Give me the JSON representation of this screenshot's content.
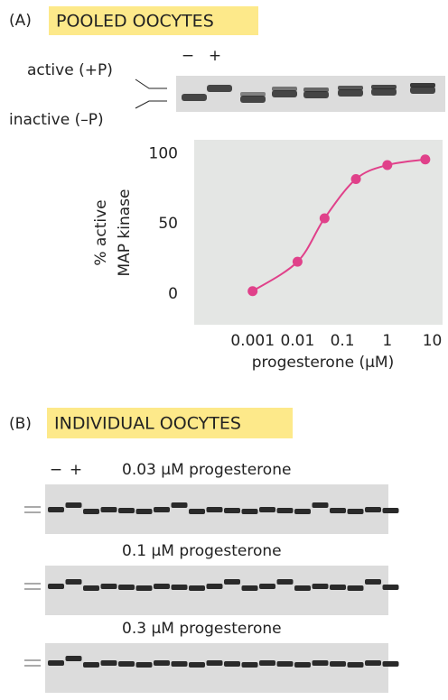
{
  "panel_a": {
    "label": "(A)",
    "title": "POOLED OOCYTES",
    "lane_minus": "−",
    "lane_plus": "+",
    "active_label": "active (+P)",
    "inactive_label": "inactive (–P)"
  },
  "chart_data": {
    "type": "line",
    "xscale": "log",
    "ylabel": [
      "% active",
      "MAP kinase"
    ],
    "xlabel": "progesterone (µM)",
    "x": [
      0.001,
      0.01,
      0.04,
      0.2,
      1,
      7
    ],
    "values": [
      2,
      23,
      54,
      82,
      92,
      96
    ],
    "color": "#e0418a",
    "background": "#e4e6e4",
    "xlim": [
      5e-05,
      17
    ],
    "xticks": [
      0.001,
      0.01,
      0.1,
      1,
      10
    ],
    "ylim": [
      -22,
      110
    ],
    "yticks": [
      0,
      50,
      100
    ],
    "grid": false
  },
  "panel_b": {
    "label": "(B)",
    "title": "INDIVIDUAL OOCYTES",
    "lane_minus": "−",
    "lane_plus": "+",
    "gels": [
      "0.03 µM progesterone",
      "0.1 µM progesterone",
      "0.3 µM progesterone"
    ]
  }
}
